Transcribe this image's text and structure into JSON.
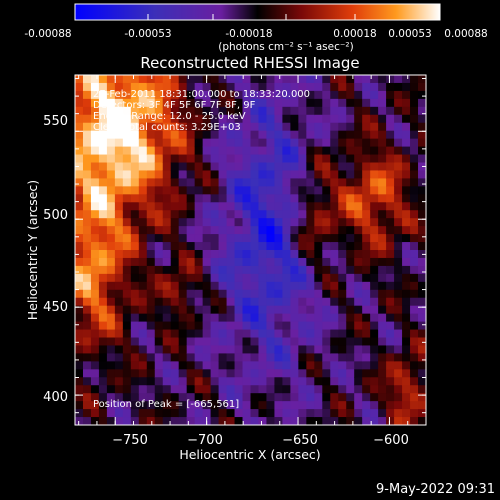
{
  "colorbar": {
    "ticks": [
      "-0.00088",
      "-0.00053",
      "-0.00018",
      "0.00018",
      "0.00053",
      "0.00088"
    ],
    "unit_label": "(photons cm⁻² s⁻¹ asec⁻²)"
  },
  "chart_data": {
    "type": "heatmap",
    "title": "Reconstructed RHESSI Image",
    "xlabel": "Heliocentric X (arcsec)",
    "ylabel": "Heliocentric Y (arcsec)",
    "xlim": [
      -772,
      -580
    ],
    "ylim": [
      383,
      582
    ],
    "x_ticks": [
      -750,
      -700,
      -650,
      -600
    ],
    "x_tick_labels": [
      "−750",
      "−700",
      "−650",
      "−600"
    ],
    "y_ticks": [
      400,
      450,
      500,
      550
    ],
    "y_tick_labels": [
      "400",
      "450",
      "500",
      "550"
    ],
    "zlim": [
      -0.00088,
      0.00088
    ],
    "colormap": [
      "#0000ff",
      "#3c2fb8",
      "#6a1fa0",
      "#000000",
      "#7a0808",
      "#e03d0a",
      "#ff9a1e",
      "#ffffff"
    ],
    "annotations": [
      "27-Feb-2011 18:31:00.000 to 18:33:20.000",
      "Detectors: 3F 4F 5F 6F 7F 8F, 9F",
      "Energy Range: 12.0 - 25.0 keV",
      "Clean    Total counts: 3.29E+03"
    ],
    "peak_label": "Position of Peak = [-665,561]"
  },
  "footer": {
    "timestamp": "9-May-2022 09:31"
  }
}
